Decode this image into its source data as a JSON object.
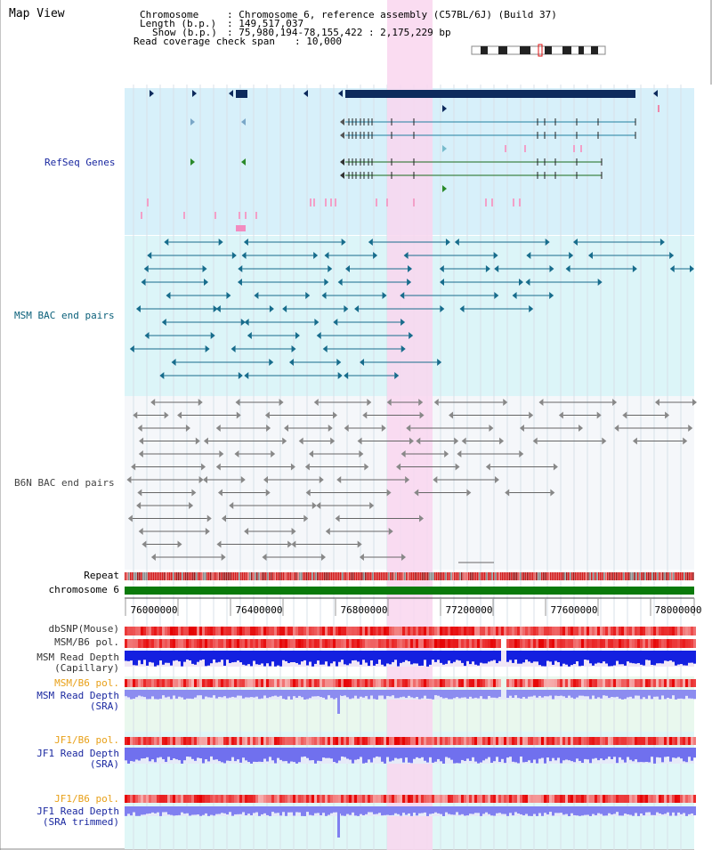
{
  "header": {
    "title": "Map View",
    "chromosome_key": "Chromosome",
    "chromosome_value": ": Chromosome 6, reference assembly (C57BL/6J) (Build 37)",
    "length_key": "Length (b.p.)",
    "length_value": ": 149,517,037",
    "show_key": "Show (b.p.)",
    "show_value": ": 75,980,194-78,155,422 : 2,175,229 bp",
    "coverage_key": "Read coverage check span",
    "coverage_value": ": 10,000"
  },
  "tracks": {
    "refseq": "RefSeq Genes",
    "msm_bac": "MSM BAC end pairs",
    "b6n_bac": "B6N BAC end pairs",
    "repeat": "Repeat",
    "chromosome": "chromosome 6"
  },
  "axis_ticks": [
    "76000000",
    "76400000",
    "76800000",
    "77200000",
    "77600000",
    "78000000"
  ],
  "lower_tracks": {
    "dbsnp": "dbSNP(Mouse)",
    "msm_b6_pol_1": "MSM/B6 pol.",
    "msm_read_depth_cap_1": "MSM Read Depth",
    "msm_read_depth_cap_2": "(Capillary)",
    "msm_b6_pol_2": "MSM/B6 pol.",
    "msm_read_depth_sra_1": "MSM Read Depth",
    "msm_read_depth_sra_2": "(SRA)",
    "jf1_b6_pol_1": "JF1/B6 pol.",
    "jf1_read_depth_sra_1": "JF1 Read Depth",
    "jf1_read_depth_sra_2": "(SRA)",
    "jf1_b6_pol_2": "JF1/B6 pol.",
    "jf1_read_depth_trim_1": "JF1 Read Depth",
    "jf1_read_depth_trim_2": "(SRA trimmed)"
  },
  "colors": {
    "highlight": "#f9d6ef",
    "refseq_bg": "#d7f0fa",
    "msm_bg": "#dcf5f8",
    "b6n_bg": "#f5f7fa",
    "gene_dark": "#0d2a5c",
    "gene_line": "#2080a0",
    "bac_msm": "#176c8c",
    "bac_b6n": "#666666",
    "chromosome": "#0a7a0a",
    "label_blue": "#1a28a0",
    "label_teal": "#0b607a",
    "label_orange": "#e8a018",
    "depth_blue": "#1420e0",
    "depth_light": "#8c8cf0"
  }
}
